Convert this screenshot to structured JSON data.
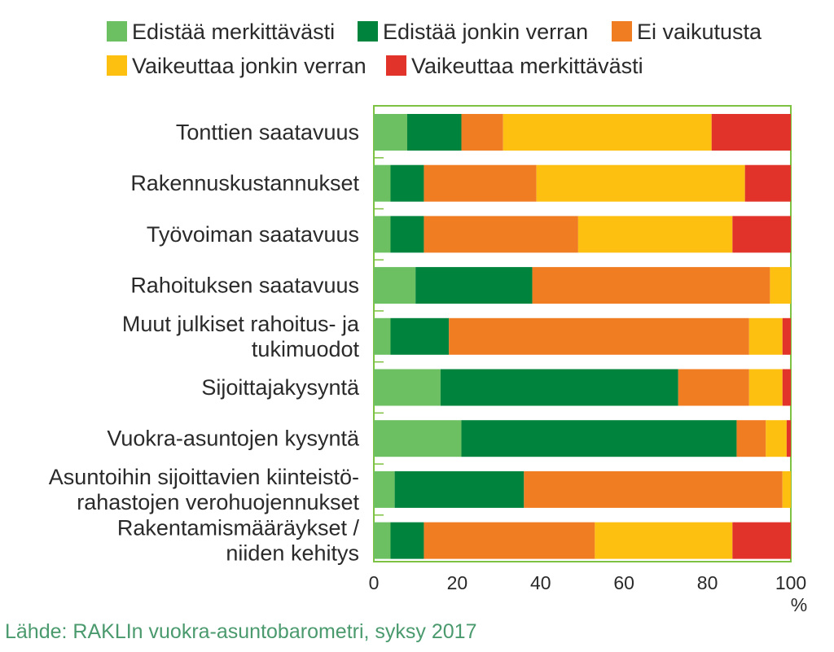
{
  "chart_data": {
    "type": "bar",
    "orientation": "horizontal",
    "stacked": true,
    "title": "",
    "xlabel": "",
    "ylabel": "",
    "x_unit": "%",
    "xlim": [
      0,
      100
    ],
    "x_ticks": [
      0,
      20,
      40,
      60,
      80,
      100
    ],
    "legend_position": "top",
    "categories": [
      [
        "Tonttien saatavuus"
      ],
      [
        "Rakennuskustannukset"
      ],
      [
        "Työvoiman saatavuus"
      ],
      [
        "Rahoituksen saatavuus"
      ],
      [
        "Muut julkiset rahoitus- ja",
        "tukimuodot"
      ],
      [
        "Sijoittajakysyntä"
      ],
      [
        "Vuokra-asuntojen kysyntä"
      ],
      [
        "Asuntoihin sijoittavien kiinteistö-",
        "rahastojen verohuojennukset"
      ],
      [
        "Rakentamismääräykset /",
        "niiden kehitys"
      ]
    ],
    "series": [
      {
        "name": "Edistää merkittävästi",
        "color": "#6cc062",
        "values": [
          8,
          4,
          4,
          10,
          4,
          16,
          21,
          5,
          4
        ]
      },
      {
        "name": "Edistää jonkin verran",
        "color": "#00843d",
        "values": [
          13,
          8,
          8,
          28,
          14,
          57,
          66,
          31,
          8
        ]
      },
      {
        "name": "Ei vaikutusta",
        "color": "#f17d23",
        "values": [
          10,
          27,
          37,
          57,
          72,
          17,
          7,
          62,
          41
        ]
      },
      {
        "name": "Vaikeuttaa jonkin verran",
        "color": "#fdc010",
        "values": [
          50,
          50,
          37,
          5,
          8,
          8,
          5,
          2,
          33
        ]
      },
      {
        "name": "Vaikeuttaa merkittävästi",
        "color": "#e2332b",
        "values": [
          19,
          11,
          14,
          0,
          2,
          2,
          1,
          0,
          14
        ]
      }
    ],
    "source": "Lähde: RAKLIn vuokra-asuntobarometri, syksy 2017"
  },
  "colors": {
    "frame": "#7dc242",
    "text": "#2a2a2a",
    "source_text": "#4a9a6e"
  }
}
